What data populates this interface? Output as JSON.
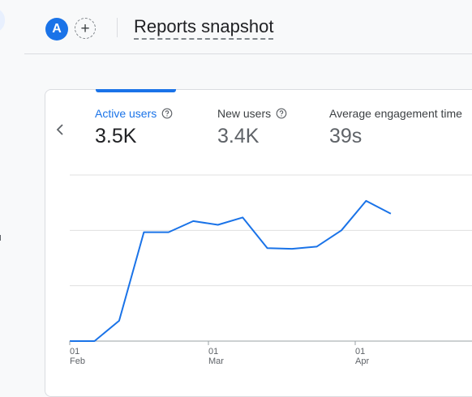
{
  "header": {
    "avatar_letter": "A",
    "add_label": "+",
    "title": "Reports snapshot"
  },
  "metrics": [
    {
      "label": "Active users",
      "value": "3.5K",
      "active": true
    },
    {
      "label": "New users",
      "value": "3.4K",
      "active": false
    },
    {
      "label": "Average engagement time",
      "value": "39s",
      "active": false
    }
  ],
  "colors": {
    "accent": "#1a73e8",
    "grid": "#e0e0e0",
    "text_secondary": "#5f6368"
  },
  "icons": {
    "prev": "chevron-left-icon",
    "help": "help-circle-icon"
  },
  "chart_data": {
    "type": "line",
    "x_tick_labels": [
      {
        "day": "01",
        "month": "Feb"
      },
      {
        "day": "01",
        "month": "Mar"
      },
      {
        "day": "01",
        "month": "Apr"
      }
    ],
    "series": [
      {
        "values": [
          0,
          0,
          550,
          2950,
          2950,
          3250,
          3150,
          3350,
          2520,
          2500,
          2560,
          3000,
          3800,
          3450
        ]
      }
    ],
    "ylim": [
      0,
      4500
    ],
    "grid": true
  }
}
